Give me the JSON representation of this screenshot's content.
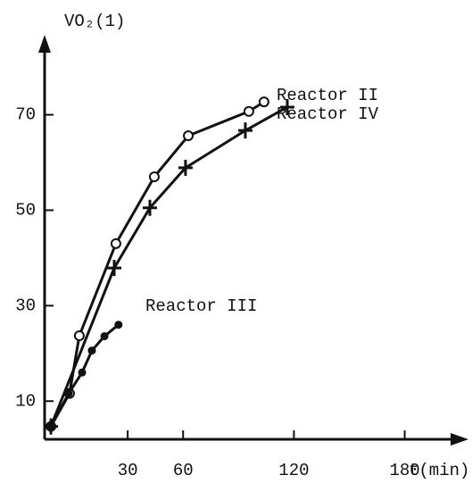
{
  "chart_data": {
    "type": "line",
    "y_label": "VO₂(1)",
    "x_label": "t(min)",
    "xlim": [
      -15,
      200
    ],
    "ylim": [
      2,
      86
    ],
    "xticks": [
      30,
      60,
      120,
      180
    ],
    "yticks": [
      10,
      30,
      50,
      70
    ],
    "series": [
      {
        "name": "Reactor II",
        "marker": "circle",
        "color": "#111111",
        "x": [
          -11.6,
          -1.5,
          3.8,
          23.6,
          44.4,
          62.8,
          95.6,
          103.8
        ],
        "values": [
          4.7,
          11.6,
          23.7,
          43,
          57,
          65.6,
          70.7,
          72.7
        ]
      },
      {
        "name": "Reactor IV",
        "marker": "plus",
        "color": "#111111",
        "x": [
          -11.6,
          22.7,
          42,
          61.3,
          93.7,
          116.4
        ],
        "values": [
          4.7,
          37.9,
          50.5,
          58.9,
          66.7,
          71.6
        ]
      },
      {
        "name": "Reactor III",
        "marker": "dot",
        "color": "#111111",
        "x": [
          -11.6,
          -2,
          5.3,
          10.6,
          17.4,
          25
        ],
        "values": [
          4.7,
          11.6,
          16,
          20.6,
          23.6,
          26
        ]
      }
    ]
  }
}
